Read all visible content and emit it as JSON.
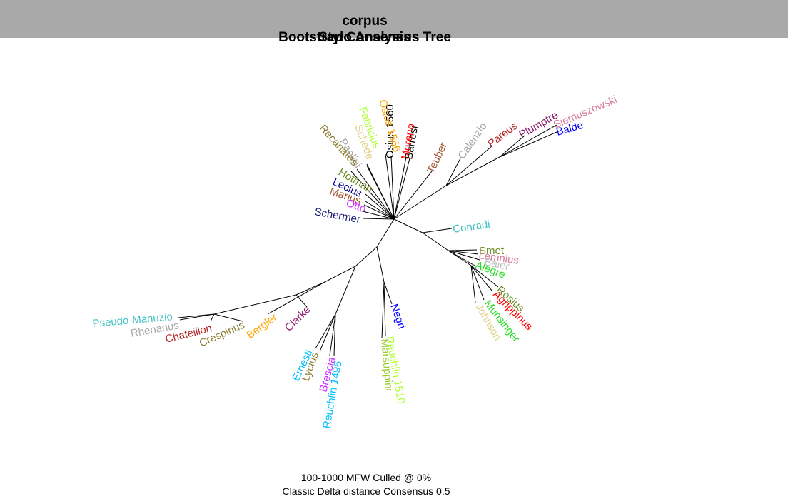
{
  "title": {
    "main": "corpus",
    "sub_overlap": "Stylo Analysis",
    "sub": "Bootstrap Consensus Tree"
  },
  "footer": {
    "line1": "100-1000 MFW  Culled @ 0%",
    "line2": "Classic Delta distance Consensus 0.5"
  },
  "leaves": [
    {
      "label": "Siemuszowski",
      "color": "#d47a9c"
    },
    {
      "label": "Balde",
      "color": "#0000ff"
    },
    {
      "label": "Plumptre",
      "color": "#8b1a6b"
    },
    {
      "label": "Pareus",
      "color": "#b22222"
    },
    {
      "label": "Calenzio",
      "color": "#a8a8a8"
    },
    {
      "label": "Teuber",
      "color": "#a0522d"
    },
    {
      "label": "Barresi",
      "color": "#000000"
    },
    {
      "label": "Moreno",
      "color": "#ff0000"
    },
    {
      "label": "Osius 1560",
      "color": "#000000"
    },
    {
      "label": "Osius 1566",
      "color": "#ffa500"
    },
    {
      "label": "Schede",
      "color": "#e0d088"
    },
    {
      "label": "Fabricius",
      "color": "#adff2f"
    },
    {
      "label": "Paolini",
      "color": "#a8a8a8"
    },
    {
      "label": "Recanates",
      "color": "#8b7d30"
    },
    {
      "label": "Hotman",
      "color": "#6b8e23"
    },
    {
      "label": "Lecius",
      "color": "#00008b"
    },
    {
      "label": "Marius",
      "color": "#a0522d"
    },
    {
      "label": "Otto",
      "color": "#cc33ff"
    },
    {
      "label": "Schermer",
      "color": "#191970"
    },
    {
      "label": "Conradi",
      "color": "#40c0c0"
    },
    {
      "label": "Smet",
      "color": "#6b8e23"
    },
    {
      "label": "Lemnius",
      "color": "#d47a9c"
    },
    {
      "label": "Baier",
      "color": "#c0c0c0"
    },
    {
      "label": "Alegre",
      "color": "#22dd22"
    },
    {
      "label": "Rosius",
      "color": "#6b8e23"
    },
    {
      "label": "Agrippinus",
      "color": "#ff0000"
    },
    {
      "label": "Munsinger",
      "color": "#22dd22"
    },
    {
      "label": "Johnson",
      "color": "#e0d088"
    },
    {
      "label": "Negri",
      "color": "#0000ff"
    },
    {
      "label": "Reuchlin 1510",
      "color": "#adff2f"
    },
    {
      "label": "Marsuppini",
      "color": "#9acd32"
    },
    {
      "label": "Reuchlin 1496",
      "color": "#00bfff"
    },
    {
      "label": "Brescia",
      "color": "#cc33ff"
    },
    {
      "label": "Lycius",
      "color": "#8b7d30"
    },
    {
      "label": "Ernesti",
      "color": "#00bfff"
    },
    {
      "label": "Clarke",
      "color": "#8b1a6b"
    },
    {
      "label": "Bergler",
      "color": "#ffa500"
    },
    {
      "label": "Crespinus",
      "color": "#8b7d30"
    },
    {
      "label": "Chateillon",
      "color": "#b22222"
    },
    {
      "label": "Rhenanus",
      "color": "#a8a8a8"
    },
    {
      "label": "Pseudo-Manuzio",
      "color": "#40c0c0"
    }
  ]
}
